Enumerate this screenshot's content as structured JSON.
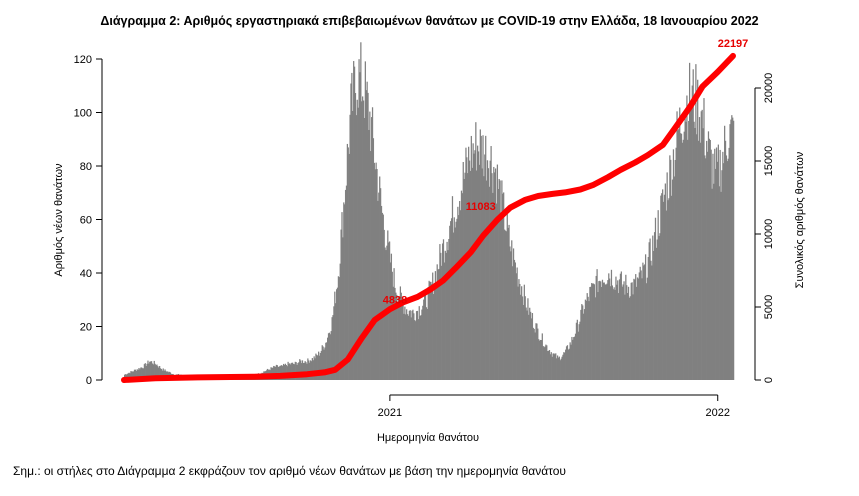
{
  "chart_data": {
    "type": "bar",
    "title": "Διάγραμμα 2: Αριθμός εργαστηριακά επιβεβαιωμένων θανάτων με COVID-19 στην Ελλάδα, 18 Ιανουαρίου 2022",
    "xlabel": "Ημερομηνία θανάτου",
    "ylabel": "Αριθμός νέων θανάτων",
    "y2label": "Συνολικός αριθμός θανάτων",
    "note": "Σημ.: οι στήλες στο Διάγραμμα 2 εκφράζουν τον αριθμό νέων θανάτων με βάση την ημερομηνία θανάτου",
    "x_range": [
      "2020-03-11",
      "2022-01-18"
    ],
    "x_ticks": [
      {
        "date": "2021-01-01",
        "label": "2021"
      },
      {
        "date": "2022-01-01",
        "label": "2022"
      }
    ],
    "ylim": [
      0,
      125
    ],
    "y_ticks": [
      0,
      20,
      40,
      60,
      80,
      100,
      120
    ],
    "y2lim": [
      0,
      22500
    ],
    "y2_ticks": [
      0,
      5000,
      10000,
      15000,
      20000
    ],
    "bar_color": "#808080",
    "line_color": "#ff0000",
    "series": [
      {
        "name": "Νέοι θάνατοι",
        "kind": "bar",
        "weekly_daily_values": [
          {
            "week_start": "2020-03-11",
            "value": 2
          },
          {
            "week_start": "2020-03-18",
            "value": 3
          },
          {
            "week_start": "2020-03-25",
            "value": 4
          },
          {
            "week_start": "2020-04-01",
            "value": 5
          },
          {
            "week_start": "2020-04-08",
            "value": 7
          },
          {
            "week_start": "2020-04-15",
            "value": 6
          },
          {
            "week_start": "2020-04-22",
            "value": 4
          },
          {
            "week_start": "2020-04-29",
            "value": 3
          },
          {
            "week_start": "2020-05-06",
            "value": 2
          },
          {
            "week_start": "2020-05-13",
            "value": 2
          },
          {
            "week_start": "2020-05-20",
            "value": 1
          },
          {
            "week_start": "2020-05-27",
            "value": 1
          },
          {
            "week_start": "2020-06-03",
            "value": 1
          },
          {
            "week_start": "2020-06-10",
            "value": 1
          },
          {
            "week_start": "2020-06-17",
            "value": 1
          },
          {
            "week_start": "2020-06-24",
            "value": 1
          },
          {
            "week_start": "2020-07-01",
            "value": 1
          },
          {
            "week_start": "2020-07-08",
            "value": 1
          },
          {
            "week_start": "2020-07-15",
            "value": 1
          },
          {
            "week_start": "2020-07-22",
            "value": 1
          },
          {
            "week_start": "2020-07-29",
            "value": 2
          },
          {
            "week_start": "2020-08-05",
            "value": 2
          },
          {
            "week_start": "2020-08-12",
            "value": 3
          },
          {
            "week_start": "2020-08-19",
            "value": 4
          },
          {
            "week_start": "2020-08-26",
            "value": 5
          },
          {
            "week_start": "2020-09-02",
            "value": 5
          },
          {
            "week_start": "2020-09-09",
            "value": 6
          },
          {
            "week_start": "2020-09-16",
            "value": 6
          },
          {
            "week_start": "2020-09-23",
            "value": 7
          },
          {
            "week_start": "2020-09-30",
            "value": 7
          },
          {
            "week_start": "2020-10-07",
            "value": 8
          },
          {
            "week_start": "2020-10-14",
            "value": 10
          },
          {
            "week_start": "2020-10-21",
            "value": 14
          },
          {
            "week_start": "2020-10-28",
            "value": 22
          },
          {
            "week_start": "2020-11-04",
            "value": 40
          },
          {
            "week_start": "2020-11-11",
            "value": 70
          },
          {
            "week_start": "2020-11-18",
            "value": 100
          },
          {
            "week_start": "2020-11-25",
            "value": 114
          },
          {
            "week_start": "2020-12-02",
            "value": 110
          },
          {
            "week_start": "2020-12-09",
            "value": 98
          },
          {
            "week_start": "2020-12-16",
            "value": 80
          },
          {
            "week_start": "2020-12-23",
            "value": 62
          },
          {
            "week_start": "2020-12-30",
            "value": 48
          },
          {
            "week_start": "2021-01-06",
            "value": 36
          },
          {
            "week_start": "2021-01-13",
            "value": 30
          },
          {
            "week_start": "2021-01-20",
            "value": 26
          },
          {
            "week_start": "2021-01-27",
            "value": 25
          },
          {
            "week_start": "2021-02-03",
            "value": 27
          },
          {
            "week_start": "2021-02-10",
            "value": 30
          },
          {
            "week_start": "2021-02-17",
            "value": 36
          },
          {
            "week_start": "2021-02-24",
            "value": 44
          },
          {
            "week_start": "2021-03-03",
            "value": 52
          },
          {
            "week_start": "2021-03-10",
            "value": 60
          },
          {
            "week_start": "2021-03-17",
            "value": 68
          },
          {
            "week_start": "2021-03-24",
            "value": 76
          },
          {
            "week_start": "2021-03-31",
            "value": 84
          },
          {
            "week_start": "2021-04-07",
            "value": 88
          },
          {
            "week_start": "2021-04-14",
            "value": 86
          },
          {
            "week_start": "2021-04-21",
            "value": 84
          },
          {
            "week_start": "2021-04-28",
            "value": 78
          },
          {
            "week_start": "2021-05-05",
            "value": 66
          },
          {
            "week_start": "2021-05-12",
            "value": 54
          },
          {
            "week_start": "2021-05-19",
            "value": 44
          },
          {
            "week_start": "2021-05-26",
            "value": 36
          },
          {
            "week_start": "2021-06-02",
            "value": 28
          },
          {
            "week_start": "2021-06-09",
            "value": 22
          },
          {
            "week_start": "2021-06-16",
            "value": 17
          },
          {
            "week_start": "2021-06-23",
            "value": 13
          },
          {
            "week_start": "2021-06-30",
            "value": 10
          },
          {
            "week_start": "2021-07-07",
            "value": 8
          },
          {
            "week_start": "2021-07-14",
            "value": 10
          },
          {
            "week_start": "2021-07-21",
            "value": 14
          },
          {
            "week_start": "2021-07-28",
            "value": 20
          },
          {
            "week_start": "2021-08-04",
            "value": 27
          },
          {
            "week_start": "2021-08-11",
            "value": 32
          },
          {
            "week_start": "2021-08-18",
            "value": 36
          },
          {
            "week_start": "2021-08-25",
            "value": 39
          },
          {
            "week_start": "2021-09-01",
            "value": 40
          },
          {
            "week_start": "2021-09-08",
            "value": 38
          },
          {
            "week_start": "2021-09-15",
            "value": 36
          },
          {
            "week_start": "2021-09-22",
            "value": 35
          },
          {
            "week_start": "2021-09-29",
            "value": 35
          },
          {
            "week_start": "2021-10-06",
            "value": 38
          },
          {
            "week_start": "2021-10-13",
            "value": 42
          },
          {
            "week_start": "2021-10-20",
            "value": 50
          },
          {
            "week_start": "2021-10-27",
            "value": 60
          },
          {
            "week_start": "2021-11-03",
            "value": 70
          },
          {
            "week_start": "2021-11-10",
            "value": 80
          },
          {
            "week_start": "2021-11-17",
            "value": 92
          },
          {
            "week_start": "2021-11-24",
            "value": 102
          },
          {
            "week_start": "2021-12-01",
            "value": 106
          },
          {
            "week_start": "2021-12-08",
            "value": 104
          },
          {
            "week_start": "2021-12-15",
            "value": 96
          },
          {
            "week_start": "2021-12-22",
            "value": 84
          },
          {
            "week_start": "2021-12-29",
            "value": 76
          },
          {
            "week_start": "2022-01-05",
            "value": 82
          },
          {
            "week_start": "2022-01-12",
            "value": 92
          }
        ]
      },
      {
        "name": "Συνολικός αριθμός θανάτων",
        "kind": "line",
        "axis": "right",
        "points": [
          [
            "2020-03-11",
            0
          ],
          [
            "2020-04-15",
            120
          ],
          [
            "2020-06-01",
            180
          ],
          [
            "2020-08-01",
            220
          ],
          [
            "2020-09-01",
            280
          ],
          [
            "2020-10-01",
            400
          ],
          [
            "2020-10-20",
            520
          ],
          [
            "2020-11-01",
            700
          ],
          [
            "2020-11-15",
            1400
          ],
          [
            "2020-12-01",
            2900
          ],
          [
            "2020-12-15",
            4100
          ],
          [
            "2021-01-01",
            4850
          ],
          [
            "2021-01-15",
            5300
          ],
          [
            "2021-02-01",
            5700
          ],
          [
            "2021-02-15",
            6200
          ],
          [
            "2021-03-01",
            6800
          ],
          [
            "2021-03-15",
            7650
          ],
          [
            "2021-04-01",
            8750
          ],
          [
            "2021-04-15",
            9900
          ],
          [
            "2021-05-01",
            11000
          ],
          [
            "2021-05-15",
            11800
          ],
          [
            "2021-06-01",
            12350
          ],
          [
            "2021-06-15",
            12600
          ],
          [
            "2021-07-01",
            12750
          ],
          [
            "2021-07-15",
            12850
          ],
          [
            "2021-08-01",
            13050
          ],
          [
            "2021-08-15",
            13350
          ],
          [
            "2021-09-01",
            13900
          ],
          [
            "2021-09-15",
            14400
          ],
          [
            "2021-10-01",
            14900
          ],
          [
            "2021-10-15",
            15400
          ],
          [
            "2021-11-01",
            16100
          ],
          [
            "2021-11-15",
            17300
          ],
          [
            "2021-12-01",
            18700
          ],
          [
            "2021-12-15",
            20100
          ],
          [
            "2022-01-01",
            21100
          ],
          [
            "2022-01-18",
            22197
          ]
        ]
      }
    ],
    "annotations": [
      {
        "date": "2020-12-31",
        "value": 4838,
        "label": "4838",
        "axis": "right"
      },
      {
        "date": "2021-04-30",
        "value": 11083,
        "label": "11083",
        "axis": "right"
      },
      {
        "date": "2022-01-18",
        "value": 22197,
        "label": "22197",
        "axis": "right"
      }
    ]
  }
}
